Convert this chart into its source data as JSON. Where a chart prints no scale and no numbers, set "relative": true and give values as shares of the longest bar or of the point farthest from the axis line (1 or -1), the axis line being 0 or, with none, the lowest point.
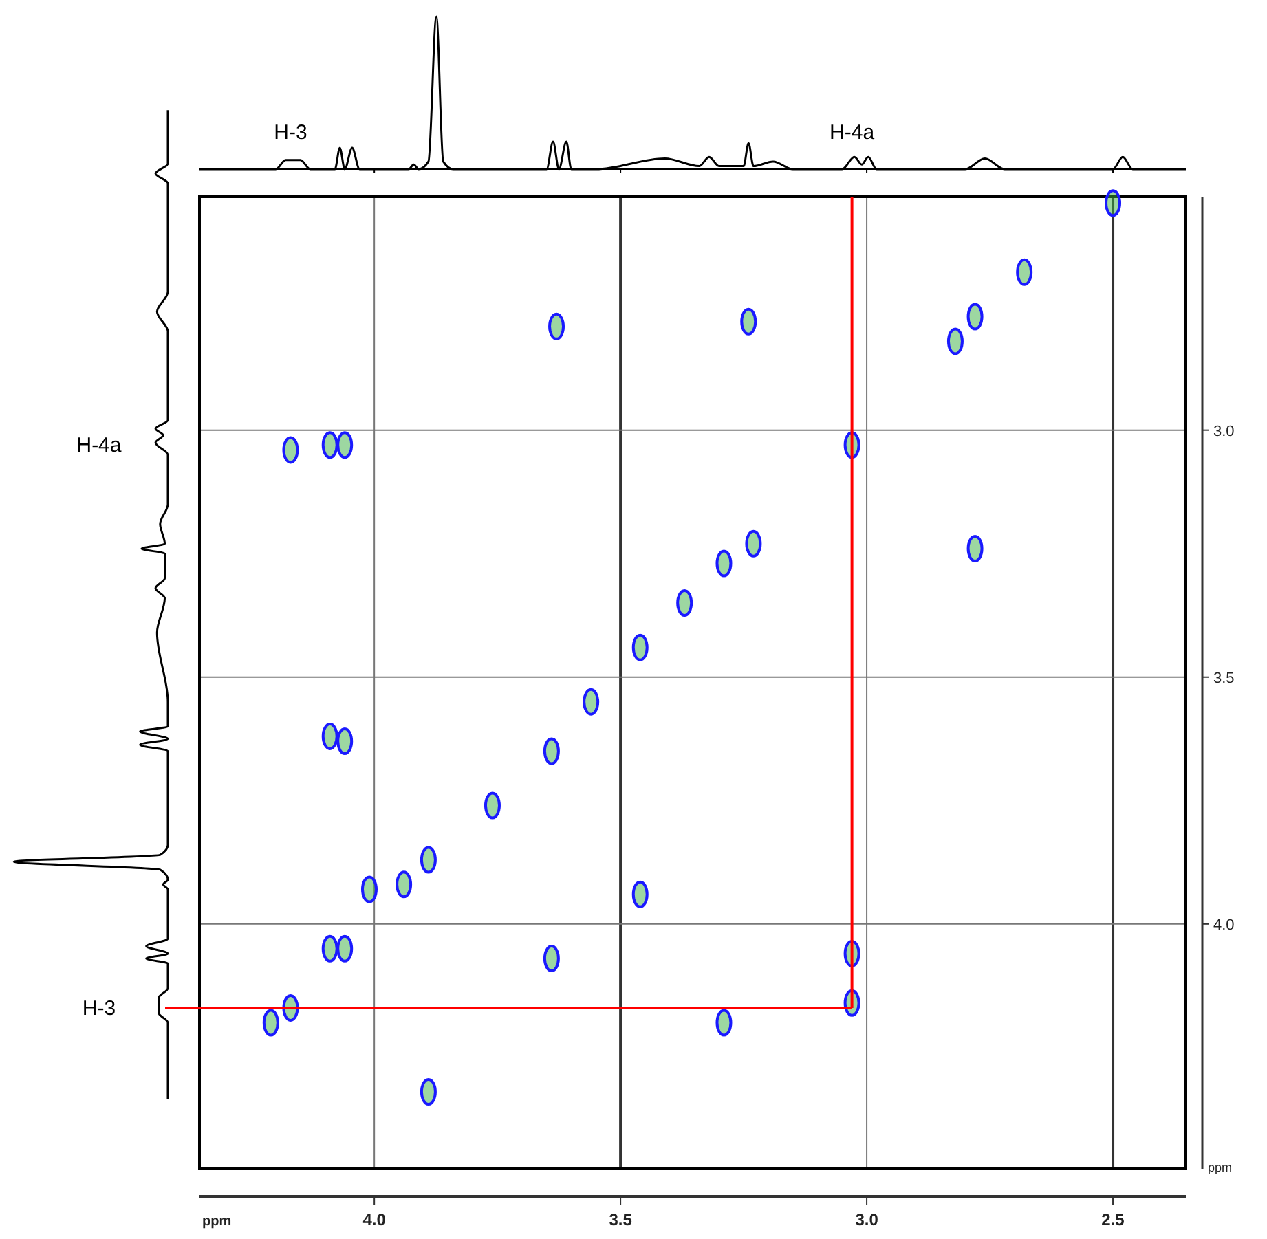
{
  "chart_data": [
    {
      "type": "line",
      "relative": true,
      "color": "#000000",
      "tick_labels": false,
      "xlim": [
        4.355,
        2.352
      ],
      "xticks": [
        4.0,
        3.5,
        3.0,
        2.5
      ],
      "x": [
        4.355,
        4.2,
        4.18,
        4.165,
        4.15,
        4.13,
        4.08,
        4.07,
        4.06,
        4.045,
        4.03,
        3.93,
        3.92,
        3.91,
        3.89,
        3.874,
        3.86,
        3.84,
        3.65,
        3.637,
        3.625,
        3.61,
        3.6,
        3.55,
        3.41,
        3.34,
        3.32,
        3.3,
        3.25,
        3.24,
        3.23,
        3.19,
        3.15,
        3.05,
        3.025,
        3.01,
        2.997,
        2.98,
        2.8,
        2.76,
        2.72,
        2.5,
        2.48,
        2.46,
        2.352
      ],
      "values": [
        0,
        0,
        0.06,
        0.06,
        0.06,
        0,
        0,
        0.14,
        0,
        0.14,
        0,
        0,
        0.03,
        0,
        0.05,
        1,
        0.05,
        0,
        0,
        0.18,
        0,
        0.18,
        0,
        0,
        0.07,
        0.02,
        0.08,
        0.02,
        0.02,
        0.17,
        0.02,
        0.05,
        0,
        0,
        0.08,
        0.03,
        0.08,
        0,
        0,
        0.07,
        0,
        0,
        0.08,
        0,
        0
      ],
      "annotations": [
        "H-3",
        "H-4a"
      ]
    },
    {
      "type": "scatter",
      "marker": "circle",
      "grid": true,
      "xlabel": "ppm",
      "ylabel": "ppm",
      "xlim": [
        4.355,
        2.352
      ],
      "ylim": [
        4.496,
        2.527
      ],
      "xticks": [
        {
          "value": 4.0,
          "label": "4.0"
        },
        {
          "value": 3.5,
          "label": "3.5"
        },
        {
          "value": 3.0,
          "label": "3.0"
        },
        {
          "value": 2.5,
          "label": "2.5"
        }
      ],
      "yticks": [
        {
          "value": 3.0,
          "label": "3.0"
        },
        {
          "value": 3.5,
          "label": "3.5"
        },
        {
          "value": 4.0,
          "label": "4.0"
        }
      ],
      "ref_lines": [
        {
          "axis": "x",
          "value": 3.03,
          "color": "#ff0000"
        },
        {
          "axis": "y",
          "value": 4.17,
          "color": "#ff0000"
        }
      ],
      "series": [
        {
          "color": "#1a1aff",
          "x": [
            2.5,
            2.68,
            2.78,
            2.82,
            3.24,
            3.63,
            4.17,
            4.09,
            4.06,
            3.03,
            2.78,
            3.23,
            3.29,
            3.37,
            3.46,
            3.56,
            4.09,
            4.06,
            3.64,
            3.76,
            3.89,
            3.94,
            4.01,
            3.46,
            4.09,
            4.06,
            3.64,
            3.03,
            3.03,
            4.17,
            4.21,
            3.29,
            3.89
          ],
          "values": [
            2.54,
            2.68,
            2.77,
            2.82,
            2.78,
            2.79,
            3.04,
            3.03,
            3.03,
            3.03,
            3.24,
            3.23,
            3.27,
            3.35,
            3.44,
            3.55,
            3.62,
            3.63,
            3.65,
            3.76,
            3.87,
            3.92,
            3.93,
            3.94,
            4.05,
            4.05,
            4.07,
            4.06,
            4.16,
            4.17,
            4.2,
            4.2,
            4.34
          ]
        }
      ]
    }
  ]
}
